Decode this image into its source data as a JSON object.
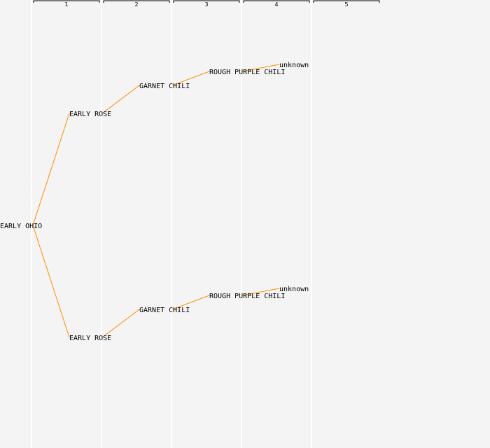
{
  "generations": [
    "1",
    "2",
    "3",
    "4",
    "5"
  ],
  "tree": {
    "name": "EARLY OHIO",
    "children": [
      {
        "name": "EARLY ROSE",
        "children": [
          {
            "name": "GARNET CHILI",
            "children": [
              {
                "name": "ROUGH PURPLE CHILI",
                "children": [
                  {
                    "name": "unknown",
                    "children": []
                  }
                ]
              }
            ]
          }
        ]
      },
      {
        "name": "EARLY ROSE",
        "children": [
          {
            "name": "GARNET CHILI",
            "children": [
              {
                "name": "ROUGH PURPLE CHILI",
                "children": [
                  {
                    "name": "unknown",
                    "children": []
                  }
                ]
              }
            ]
          }
        ]
      }
    ]
  },
  "colors": {
    "background": "#f4f4f4",
    "edge": "#ff8c00",
    "separator": "#ffffff",
    "text": "#000000"
  }
}
